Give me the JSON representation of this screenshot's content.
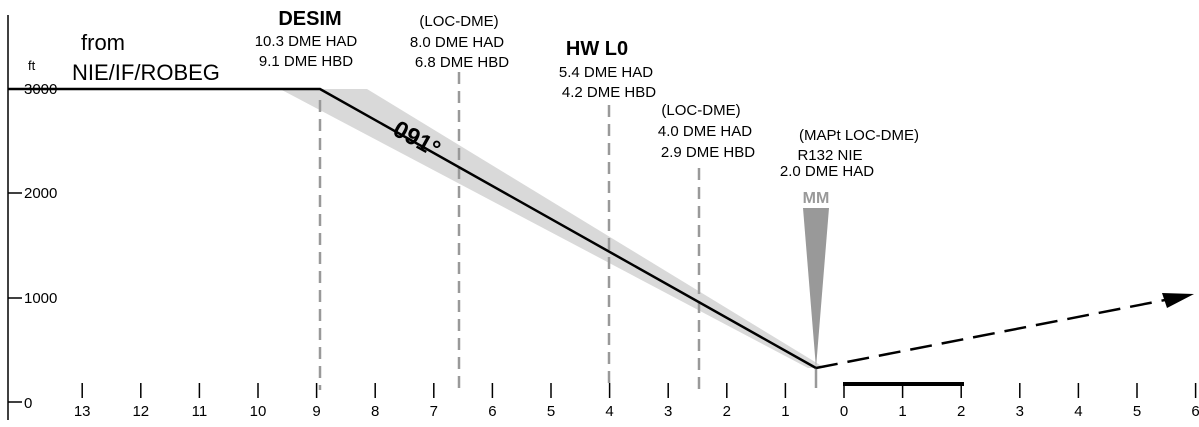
{
  "units": {
    "altitude": "ft"
  },
  "origin_label": {
    "line1": "from",
    "line2": "NIE/IF/ROBEG"
  },
  "altitude_ticks": [
    {
      "value": 3000,
      "label": "3000"
    },
    {
      "value": 2000,
      "label": "2000"
    },
    {
      "value": 1000,
      "label": "1000"
    },
    {
      "value": 0,
      "label": "0"
    }
  ],
  "distance_ticks": [
    {
      "value": 13,
      "label": "13"
    },
    {
      "value": 12,
      "label": "12"
    },
    {
      "value": 11,
      "label": "11"
    },
    {
      "value": 10,
      "label": "10"
    },
    {
      "value": 9,
      "label": "9"
    },
    {
      "value": 8,
      "label": "8"
    },
    {
      "value": 7,
      "label": "7"
    },
    {
      "value": 6,
      "label": "6"
    },
    {
      "value": 5,
      "label": "5"
    },
    {
      "value": 4,
      "label": "4"
    },
    {
      "value": 3,
      "label": "3"
    },
    {
      "value": 2,
      "label": "2"
    },
    {
      "value": 1,
      "label": "1"
    },
    {
      "value": 0,
      "label": "0"
    },
    {
      "value": -1,
      "label": "1"
    },
    {
      "value": -2,
      "label": "2"
    },
    {
      "value": -3,
      "label": "3"
    },
    {
      "value": -4,
      "label": "4"
    },
    {
      "value": -5,
      "label": "5"
    },
    {
      "value": -6,
      "label": "6"
    }
  ],
  "course_label": "091°",
  "missed_approach_marker": "MM",
  "fixes": [
    {
      "id": "desim",
      "name": "DESIM",
      "lines": [
        "10.3 DME HAD",
        "9.1 DME HBD"
      ],
      "distance": 9.0
    },
    {
      "id": "loc-dme-8",
      "name": "(LOC-DME)",
      "lines": [
        "8.0 DME HAD",
        "6.8 DME HBD"
      ],
      "distance": 6.6
    },
    {
      "id": "hw-l0",
      "name": "HW L0",
      "lines": [
        "5.4 DME HAD",
        "4.2 DME HBD"
      ],
      "distance": 4.0
    },
    {
      "id": "loc-dme-4",
      "name": "(LOC-DME)",
      "lines": [
        "4.0 DME HAD",
        "2.9 DME HBD"
      ],
      "distance": 2.5
    },
    {
      "id": "mapt",
      "name": "(MAPt LOC-DME)",
      "lines": [
        "R132 NIE",
        "2.0 DME HAD"
      ],
      "distance": 0.5
    }
  ],
  "profile": {
    "level_altitude": 3000,
    "descent_start_distance": 9.0,
    "mapt_distance": 0.5,
    "mapt_altitude": 300,
    "missed_end_distance": -6.3,
    "missed_end_altitude": 1050,
    "runway_start_distance": 0.0,
    "runway_end_distance": -2.0,
    "runway_altitude": 150
  }
}
